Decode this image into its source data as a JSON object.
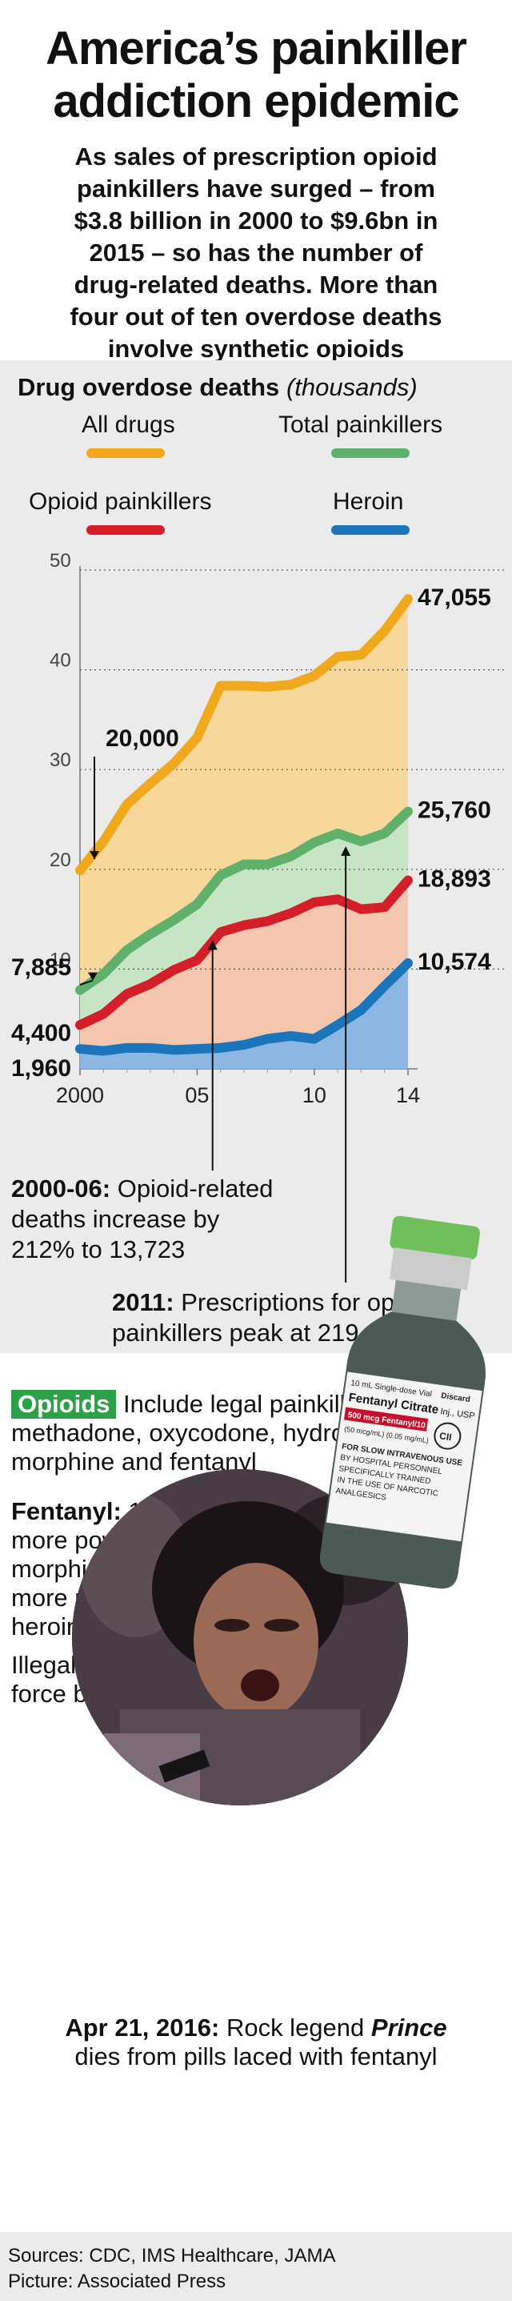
{
  "headline": [
    "America’s painkiller",
    "addiction epidemic"
  ],
  "intro": [
    "As sales of prescription opioid",
    "painkillers have surged – from",
    "$3.8 billion in 2000 to $9.6bn in",
    "2015 – so has the number of",
    "drug-related deaths. More than",
    "four out of ten overdose deaths",
    "involve synthetic opioids"
  ],
  "chart_data": {
    "type": "area",
    "title": "Drug overdose deaths",
    "title_unit": "(thousands)",
    "x": [
      2000,
      2001,
      2002,
      2003,
      2004,
      2005,
      2006,
      2007,
      2008,
      2009,
      2010,
      2011,
      2012,
      2013,
      2014
    ],
    "x_tick_labels": [
      "2000",
      "05",
      "10",
      "14"
    ],
    "x_tick_values": [
      2000,
      2005,
      2010,
      2014
    ],
    "y_ticks": [
      10,
      20,
      30,
      40,
      50
    ],
    "ylim": [
      0,
      50
    ],
    "series": [
      {
        "name": "All drugs",
        "color": "#f0a81c",
        "fill": "#f7d89a",
        "values": [
          19.9,
          22.8,
          26.5,
          28.6,
          30.6,
          33.2,
          38.4,
          38.4,
          38.3,
          38.5,
          39.4,
          41.3,
          41.5,
          43.9,
          47.1
        ],
        "end_label": "47,055",
        "start_label": "20,000"
      },
      {
        "name": "Total painkillers",
        "color": "#5fb06a",
        "fill": "#c7e4c4",
        "values": [
          7.9,
          9.5,
          11.9,
          13.5,
          14.9,
          16.5,
          19.4,
          20.5,
          20.5,
          21.3,
          22.7,
          23.6,
          22.8,
          23.6,
          25.8
        ],
        "end_label": "25,760",
        "start_label": "7,885"
      },
      {
        "name": "Opioid painkillers",
        "color": "#d41f2b",
        "fill": "#f4c6ae",
        "values": [
          4.4,
          5.5,
          7.5,
          8.5,
          9.9,
          10.9,
          13.7,
          14.4,
          14.8,
          15.6,
          16.7,
          17.0,
          16.0,
          16.2,
          18.9
        ],
        "end_label": "18,893",
        "start_label": "4,400"
      },
      {
        "name": "Heroin",
        "color": "#1b75bb",
        "fill": "#8cb7e3",
        "values": [
          2.0,
          1.8,
          2.1,
          2.1,
          1.9,
          2.0,
          2.1,
          2.4,
          3.0,
          3.3,
          3.0,
          4.4,
          5.9,
          8.3,
          10.6
        ],
        "end_label": "10,574",
        "start_label": "1,960"
      }
    ]
  },
  "annotations": {
    "a1_bold": "2000-06:",
    "a1_text": " Opioid-related",
    "a1_line2": "deaths increase by",
    "a1_line3": "212% to 13,723",
    "a2_bold": "2011:",
    "a2_text": " Prescriptions for opioid",
    "a2_line2": "painkillers peak at 219 million"
  },
  "opioids": {
    "tag": "Opioids",
    "line1": "Include legal painkillers",
    "line2": "methadone, oxycodone, hydrocodone,",
    "line3": "morphine and fentanyl"
  },
  "fentanyl": {
    "bold": "Fentanyl:",
    "line1": " 100 times",
    "line2": "more powerful than",
    "line3": "morphine, and 50 times",
    "line4": "more powerful than",
    "line5": "heroin"
  },
  "illegal": [
    "Illegal fentanyl is driving",
    "force behind epidemic"
  ],
  "vial_label": {
    "l1": "10 mL Single-dose Vial",
    "l1b": "Discard",
    "l2": "Fentanyl Citrate",
    "l2b": "Inj., USP",
    "l3": "500 mcg Fentanyl/10 mL",
    "l4": "(50 mcg/mL) (0.05 mg/mL)",
    "l5": "FOR SLOW INTRAVENOUS USE",
    "l6": "BY HOSPITAL PERSONNEL",
    "l7": "SPECIFICALLY TRAINED",
    "l8": "IN THE USE OF NARCOTIC",
    "l9": "ANALGESICS",
    "cii": "CII"
  },
  "caption": {
    "bold": "Apr 21, 2016:",
    "text1": " Rock legend ",
    "name": "Prince",
    "line2": "dies from pills laced with fentanyl"
  },
  "sources": [
    "Sources: CDC, IMS Healthcare, JAMA",
    "Picture: Associated Press"
  ]
}
